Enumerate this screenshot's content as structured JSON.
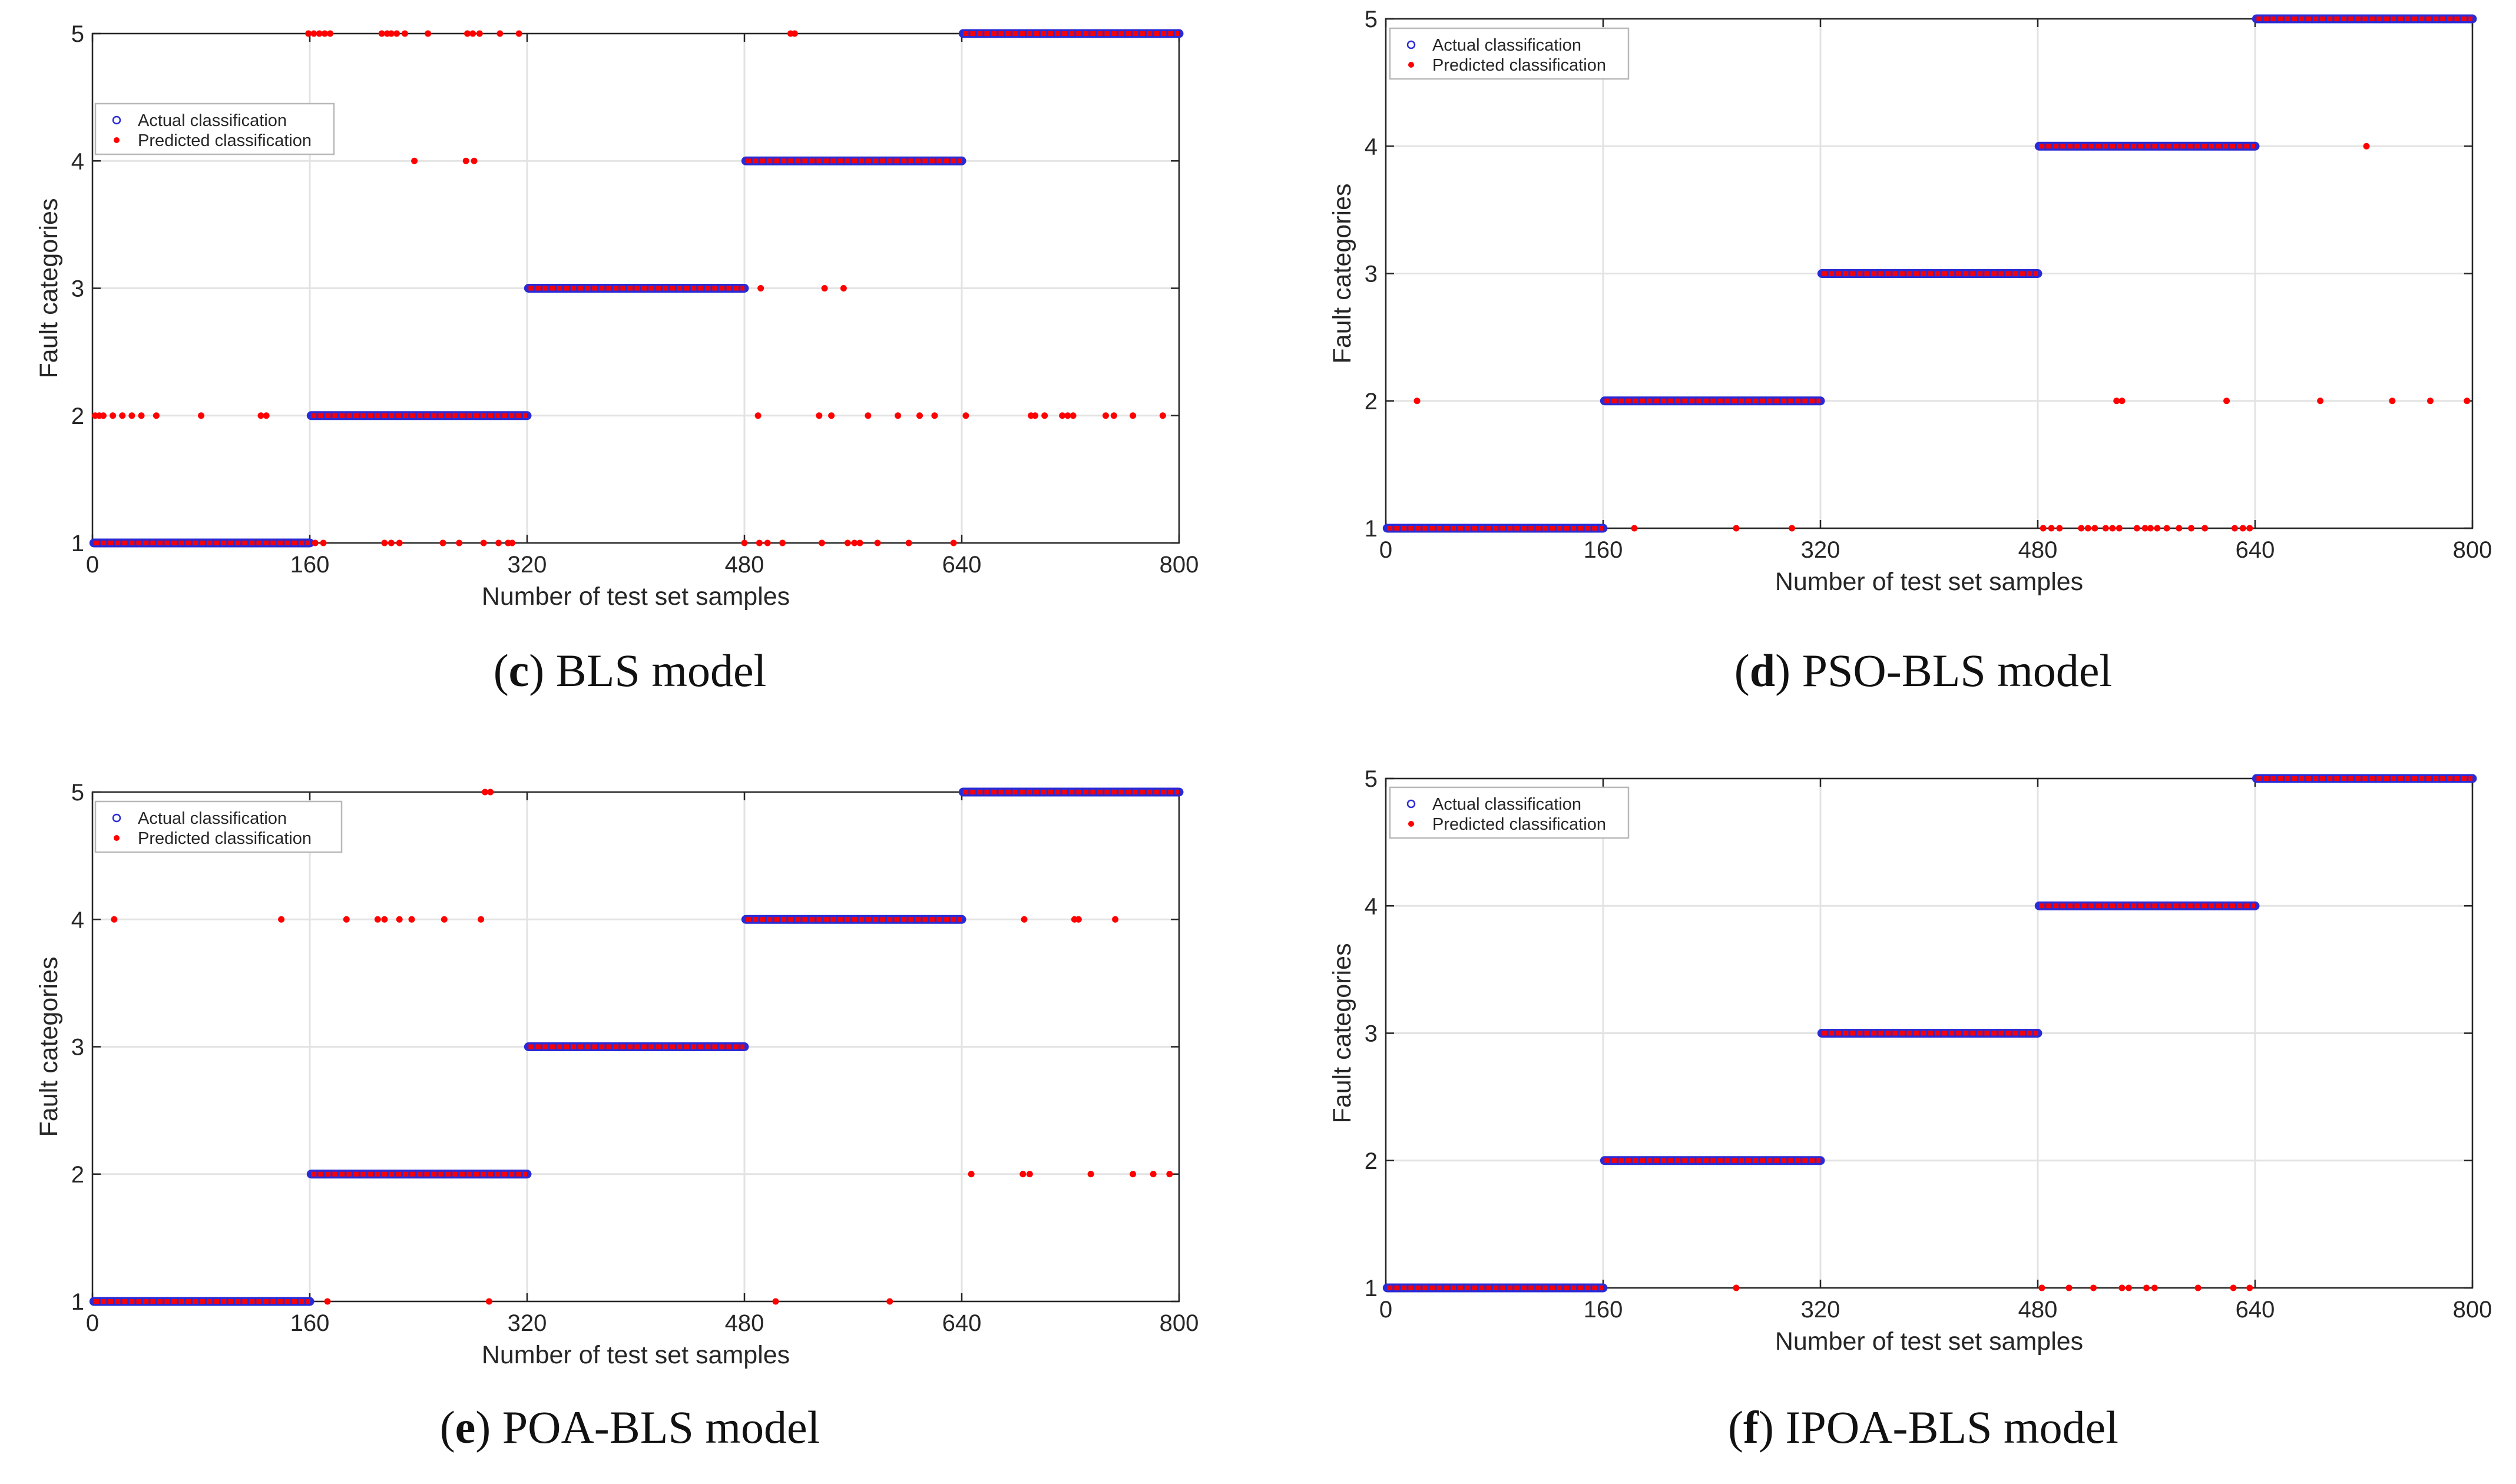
{
  "colors": {
    "actual": "#2b2bd6",
    "predicted": "#ff0000",
    "grid": "#e3e3e3",
    "axis": "#262626"
  },
  "chart_data": [
    {
      "id": "c",
      "type": "scatter",
      "caption": {
        "letter": "c",
        "text": "BLS model"
      },
      "xlabel": "Number of test set samples",
      "ylabel": "Fault categories",
      "xlim": [
        0,
        800
      ],
      "ylim": [
        1,
        5
      ],
      "xticks": [
        0,
        160,
        320,
        480,
        640,
        800
      ],
      "yticks": [
        1,
        2,
        3,
        4,
        5
      ],
      "grid": true,
      "legend_position": "upper-left",
      "series": [
        {
          "name": "Actual classification",
          "marker": "circle",
          "segments": [
            {
              "x": [
                1,
                160
              ],
              "y": 1
            },
            {
              "x": [
                161,
                320
              ],
              "y": 2
            },
            {
              "x": [
                321,
                480
              ],
              "y": 3
            },
            {
              "x": [
                481,
                640
              ],
              "y": 4
            },
            {
              "x": [
                641,
                800
              ],
              "y": 5
            }
          ]
        },
        {
          "name": "Predicted classification",
          "marker": "star",
          "segments": [
            {
              "x": [
                1,
                160
              ],
              "y": 1
            },
            {
              "x": [
                161,
                320
              ],
              "y": 2
            },
            {
              "x": [
                321,
                480
              ],
              "y": 3
            },
            {
              "x": [
                481,
                640
              ],
              "y": 4
            },
            {
              "x": [
                641,
                800
              ],
              "y": 5
            }
          ],
          "misclassified": [
            [
              2,
              2
            ],
            [
              5,
              2
            ],
            [
              8,
              2
            ],
            [
              15,
              2
            ],
            [
              22,
              2
            ],
            [
              29,
              2
            ],
            [
              36,
              2
            ],
            [
              47,
              2
            ],
            [
              80,
              2
            ],
            [
              124,
              2
            ],
            [
              128,
              2
            ],
            [
              159,
              5
            ],
            [
              163,
              5
            ],
            [
              167,
              5
            ],
            [
              171,
              5
            ],
            [
              175,
              5
            ],
            [
              213,
              5
            ],
            [
              217,
              5
            ],
            [
              220,
              5
            ],
            [
              224,
              5
            ],
            [
              230,
              5
            ],
            [
              247,
              5
            ],
            [
              276,
              5
            ],
            [
              280,
              5
            ],
            [
              285,
              5
            ],
            [
              300,
              5
            ],
            [
              314,
              5
            ],
            [
              237,
              4
            ],
            [
              275,
              4
            ],
            [
              281,
              4
            ],
            [
              164,
              1
            ],
            [
              170,
              1
            ],
            [
              215,
              1
            ],
            [
              220,
              1
            ],
            [
              226,
              1
            ],
            [
              258,
              1
            ],
            [
              270,
              1
            ],
            [
              288,
              1
            ],
            [
              299,
              1
            ],
            [
              306,
              1
            ],
            [
              309,
              1
            ],
            [
              492,
              3
            ],
            [
              539,
              3
            ],
            [
              553,
              3
            ],
            [
              514,
              5
            ],
            [
              517,
              5
            ],
            [
              490,
              2
            ],
            [
              535,
              2
            ],
            [
              544,
              2
            ],
            [
              571,
              2
            ],
            [
              593,
              2
            ],
            [
              609,
              2
            ],
            [
              620,
              2
            ],
            [
              643,
              2
            ],
            [
              691,
              2
            ],
            [
              694,
              2
            ],
            [
              701,
              2
            ],
            [
              714,
              2
            ],
            [
              718,
              2
            ],
            [
              722,
              2
            ],
            [
              746,
              2
            ],
            [
              752,
              2
            ],
            [
              766,
              2
            ],
            [
              788,
              2
            ],
            [
              480,
              1
            ],
            [
              491,
              1
            ],
            [
              497,
              1
            ],
            [
              508,
              1
            ],
            [
              537,
              1
            ],
            [
              556,
              1
            ],
            [
              561,
              1
            ],
            [
              565,
              1
            ],
            [
              578,
              1
            ],
            [
              601,
              1
            ],
            [
              634,
              1
            ]
          ]
        }
      ]
    },
    {
      "id": "d",
      "type": "scatter",
      "caption": {
        "letter": "d",
        "text": "PSO-BLS model"
      },
      "xlabel": "Number of test set samples",
      "ylabel": "Fault categories",
      "xlim": [
        0,
        800
      ],
      "ylim": [
        1,
        5
      ],
      "xticks": [
        0,
        160,
        320,
        480,
        640,
        800
      ],
      "yticks": [
        1,
        2,
        3,
        4,
        5
      ],
      "grid": true,
      "legend_position": "upper-left",
      "series": [
        {
          "name": "Actual classification",
          "marker": "circle",
          "segments": [
            {
              "x": [
                1,
                160
              ],
              "y": 1
            },
            {
              "x": [
                161,
                320
              ],
              "y": 2
            },
            {
              "x": [
                321,
                480
              ],
              "y": 3
            },
            {
              "x": [
                481,
                640
              ],
              "y": 4
            },
            {
              "x": [
                641,
                800
              ],
              "y": 5
            }
          ]
        },
        {
          "name": "Predicted classification",
          "marker": "star",
          "segments": [
            {
              "x": [
                1,
                160
              ],
              "y": 1
            },
            {
              "x": [
                161,
                320
              ],
              "y": 2
            },
            {
              "x": [
                321,
                480
              ],
              "y": 3
            },
            {
              "x": [
                481,
                640
              ],
              "y": 4
            },
            {
              "x": [
                641,
                800
              ],
              "y": 5
            }
          ],
          "misclassified": [
            [
              23,
              2
            ],
            [
              183,
              1
            ],
            [
              258,
              1
            ],
            [
              299,
              1
            ],
            [
              484,
              1
            ],
            [
              490,
              1
            ],
            [
              496,
              1
            ],
            [
              512,
              1
            ],
            [
              517,
              1
            ],
            [
              522,
              1
            ],
            [
              530,
              1
            ],
            [
              535,
              1
            ],
            [
              540,
              1
            ],
            [
              553,
              1
            ],
            [
              559,
              1
            ],
            [
              563,
              1
            ],
            [
              568,
              1
            ],
            [
              575,
              1
            ],
            [
              584,
              1
            ],
            [
              593,
              1
            ],
            [
              603,
              1
            ],
            [
              625,
              1
            ],
            [
              631,
              1
            ],
            [
              636,
              1
            ],
            [
              538,
              2
            ],
            [
              542,
              2
            ],
            [
              619,
              2
            ],
            [
              722,
              4
            ],
            [
              688,
              2
            ],
            [
              741,
              2
            ],
            [
              769,
              2
            ],
            [
              796,
              2
            ]
          ]
        }
      ]
    },
    {
      "id": "e",
      "type": "scatter",
      "caption": {
        "letter": "e",
        "text": "POA-BLS model"
      },
      "xlabel": "Number of test set samples",
      "ylabel": "Fault categories",
      "xlim": [
        0,
        800
      ],
      "ylim": [
        1,
        5
      ],
      "xticks": [
        0,
        160,
        320,
        480,
        640,
        800
      ],
      "yticks": [
        1,
        2,
        3,
        4,
        5
      ],
      "grid": true,
      "legend_position": "upper-left",
      "series": [
        {
          "name": "Actual classification",
          "marker": "circle",
          "segments": [
            {
              "x": [
                1,
                160
              ],
              "y": 1
            },
            {
              "x": [
                161,
                320
              ],
              "y": 2
            },
            {
              "x": [
                321,
                480
              ],
              "y": 3
            },
            {
              "x": [
                481,
                640
              ],
              "y": 4
            },
            {
              "x": [
                641,
                800
              ],
              "y": 5
            }
          ]
        },
        {
          "name": "Predicted classification",
          "marker": "star",
          "segments": [
            {
              "x": [
                1,
                160
              ],
              "y": 1
            },
            {
              "x": [
                161,
                320
              ],
              "y": 2
            },
            {
              "x": [
                321,
                480
              ],
              "y": 3
            },
            {
              "x": [
                481,
                640
              ],
              "y": 4
            },
            {
              "x": [
                641,
                800
              ],
              "y": 5
            }
          ],
          "misclassified": [
            [
              16,
              4
            ],
            [
              139,
              4
            ],
            [
              187,
              4
            ],
            [
              210,
              4
            ],
            [
              215,
              4
            ],
            [
              226,
              4
            ],
            [
              235,
              4
            ],
            [
              259,
              4
            ],
            [
              286,
              4
            ],
            [
              173,
              1
            ],
            [
              292,
              1
            ],
            [
              289,
              5
            ],
            [
              293,
              5
            ],
            [
              503,
              1
            ],
            [
              587,
              1
            ],
            [
              647,
              2
            ],
            [
              685,
              2
            ],
            [
              690,
              2
            ],
            [
              735,
              2
            ],
            [
              766,
              2
            ],
            [
              781,
              2
            ],
            [
              793,
              2
            ],
            [
              686,
              4
            ],
            [
              723,
              4
            ],
            [
              726,
              4
            ],
            [
              753,
              4
            ]
          ]
        }
      ]
    },
    {
      "id": "f",
      "type": "scatter",
      "caption": {
        "letter": "f",
        "text": "IPOA-BLS model"
      },
      "xlabel": "Number of test set samples",
      "ylabel": "Fault categories",
      "xlim": [
        0,
        800
      ],
      "ylim": [
        1,
        5
      ],
      "xticks": [
        0,
        160,
        320,
        480,
        640,
        800
      ],
      "yticks": [
        1,
        2,
        3,
        4,
        5
      ],
      "grid": true,
      "legend_position": "upper-left",
      "series": [
        {
          "name": "Actual classification",
          "marker": "circle",
          "segments": [
            {
              "x": [
                1,
                160
              ],
              "y": 1
            },
            {
              "x": [
                161,
                320
              ],
              "y": 2
            },
            {
              "x": [
                321,
                480
              ],
              "y": 3
            },
            {
              "x": [
                481,
                640
              ],
              "y": 4
            },
            {
              "x": [
                641,
                800
              ],
              "y": 5
            }
          ]
        },
        {
          "name": "Predicted classification",
          "marker": "star",
          "segments": [
            {
              "x": [
                1,
                160
              ],
              "y": 1
            },
            {
              "x": [
                161,
                320
              ],
              "y": 2
            },
            {
              "x": [
                321,
                480
              ],
              "y": 3
            },
            {
              "x": [
                481,
                640
              ],
              "y": 4
            },
            {
              "x": [
                641,
                800
              ],
              "y": 5
            }
          ],
          "misclassified": [
            [
              258,
              1
            ],
            [
              483,
              1
            ],
            [
              503,
              1
            ],
            [
              521,
              1
            ],
            [
              542,
              1
            ],
            [
              547,
              1
            ],
            [
              560,
              1
            ],
            [
              566,
              1
            ],
            [
              598,
              1
            ],
            [
              624,
              1
            ],
            [
              636,
              1
            ]
          ]
        }
      ]
    }
  ]
}
